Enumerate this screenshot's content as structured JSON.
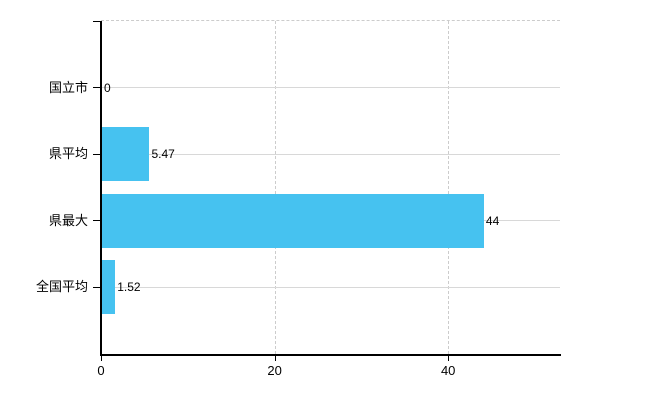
{
  "chart_data": {
    "type": "bar",
    "orientation": "horizontal",
    "title": "",
    "xlabel": "",
    "ylabel": "",
    "categories": [
      "国立市",
      "県平均",
      "県最大",
      "全国平均"
    ],
    "values": [
      0,
      5.47,
      44,
      1.52
    ],
    "x_ticks": [
      0,
      20,
      40
    ],
    "xlim": [
      0,
      53
    ],
    "grid": true,
    "legend": false,
    "colors": {
      "bar": "#46C2F0",
      "axis": "#000000",
      "grid_solid": "#D8D8D8",
      "grid_dashed": "#CCCCCC",
      "text": "#000000",
      "background": "#FFFFFF"
    }
  }
}
